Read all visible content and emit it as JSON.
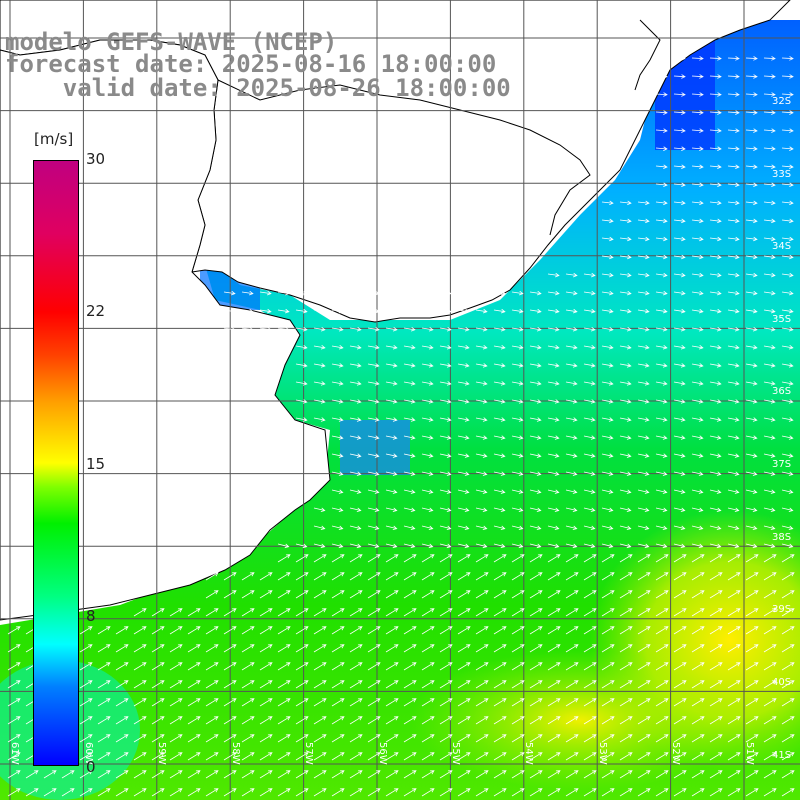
{
  "header": {
    "line1": "modelo GEFS-WAVE (NCEP)",
    "line2": "forecast date: 2025-08-16 18:00:00",
    "line3": "    valid date: 2025-08-26 18:00:00"
  },
  "colorbar": {
    "unit": "[m/s]",
    "ticks": [
      "30",
      "22",
      "15",
      "8",
      "0"
    ]
  },
  "grid": {
    "lat_labels": [
      "32S",
      "33S",
      "34S",
      "35S",
      "36S",
      "37S",
      "38S",
      "39S",
      "40S",
      "41S"
    ],
    "lon_labels": [
      "61W",
      "60W",
      "59W",
      "58W",
      "57W",
      "56W",
      "55W",
      "54W",
      "53W",
      "52W",
      "51W"
    ]
  },
  "colors": {
    "land": "#ffffff",
    "coastline": "#000000",
    "gridline": "#555555",
    "arrows": "#ffffff",
    "title": "#8a8a8a"
  },
  "field": {
    "variable": "wind speed",
    "min": 0,
    "max": 30
  }
}
